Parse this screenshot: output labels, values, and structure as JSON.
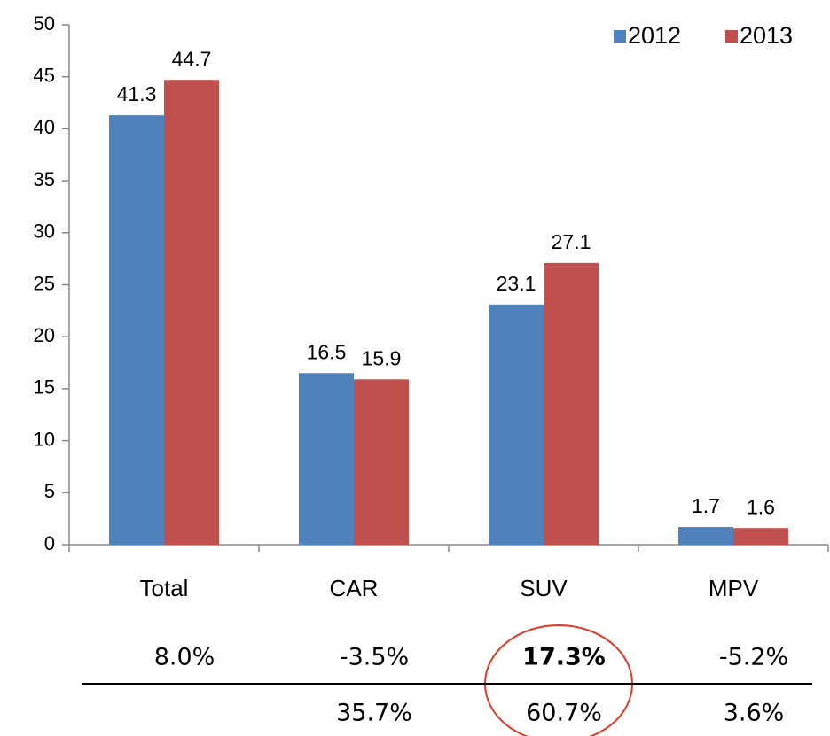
{
  "chart_data": {
    "type": "bar",
    "categories": [
      "Total",
      "CAR",
      "SUV",
      "MPV"
    ],
    "series": [
      {
        "name": "2012",
        "color": "#4f81bd",
        "values": [
          41.3,
          16.5,
          23.1,
          1.7
        ]
      },
      {
        "name": "2013",
        "color": "#c0504d",
        "values": [
          44.7,
          15.9,
          27.1,
          1.6
        ]
      }
    ],
    "ylim": [
      0,
      50
    ],
    "yticks": [
      0,
      5,
      10,
      15,
      20,
      25,
      30,
      35,
      40,
      45,
      50
    ],
    "grid": false,
    "legend": "top-right",
    "growth": [
      "8.0%",
      "-3.5%",
      "17.3%",
      "-5.2%"
    ],
    "share": [
      null,
      "35.7%",
      "60.7%",
      "3.6%"
    ],
    "growth_highlight": {
      "index": 2,
      "color": "#ff0000"
    }
  }
}
